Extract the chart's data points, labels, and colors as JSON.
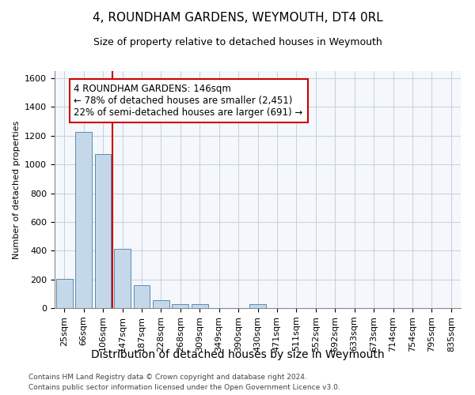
{
  "title": "4, ROUNDHAM GARDENS, WEYMOUTH, DT4 0RL",
  "subtitle": "Size of property relative to detached houses in Weymouth",
  "xlabel": "Distribution of detached houses by size in Weymouth",
  "ylabel": "Number of detached properties",
  "categories": [
    "25sqm",
    "66sqm",
    "106sqm",
    "147sqm",
    "187sqm",
    "228sqm",
    "268sqm",
    "309sqm",
    "349sqm",
    "390sqm",
    "430sqm",
    "471sqm",
    "511sqm",
    "552sqm",
    "592sqm",
    "633sqm",
    "673sqm",
    "714sqm",
    "754sqm",
    "795sqm",
    "835sqm"
  ],
  "values": [
    205,
    1225,
    1075,
    410,
    160,
    55,
    30,
    25,
    0,
    0,
    25,
    0,
    0,
    0,
    0,
    0,
    0,
    0,
    0,
    0,
    0
  ],
  "bar_color": "#c5d8ea",
  "bar_edge_color": "#5a8db0",
  "red_line_x": 3.0,
  "red_line_color": "#cc0000",
  "annotation_line1": "4 ROUNDHAM GARDENS: 146sqm",
  "annotation_line2": "← 78% of detached houses are smaller (2,451)",
  "annotation_line3": "22% of semi-detached houses are larger (691) →",
  "annotation_box_facecolor": "#ffffff",
  "annotation_box_edgecolor": "#cc0000",
  "ylim_max": 1650,
  "yticks": [
    0,
    200,
    400,
    600,
    800,
    1000,
    1200,
    1400,
    1600
  ],
  "footer1": "Contains HM Land Registry data © Crown copyright and database right 2024.",
  "footer2": "Contains public sector information licensed under the Open Government Licence v3.0.",
  "grid_color": "#c8d0d8",
  "axes_bg": "#f4f7fb",
  "title_fontsize": 11,
  "subtitle_fontsize": 9,
  "ylabel_fontsize": 8,
  "xlabel_fontsize": 10,
  "tick_fontsize": 8,
  "annot_fontsize": 8.5,
  "footer_fontsize": 6.5
}
